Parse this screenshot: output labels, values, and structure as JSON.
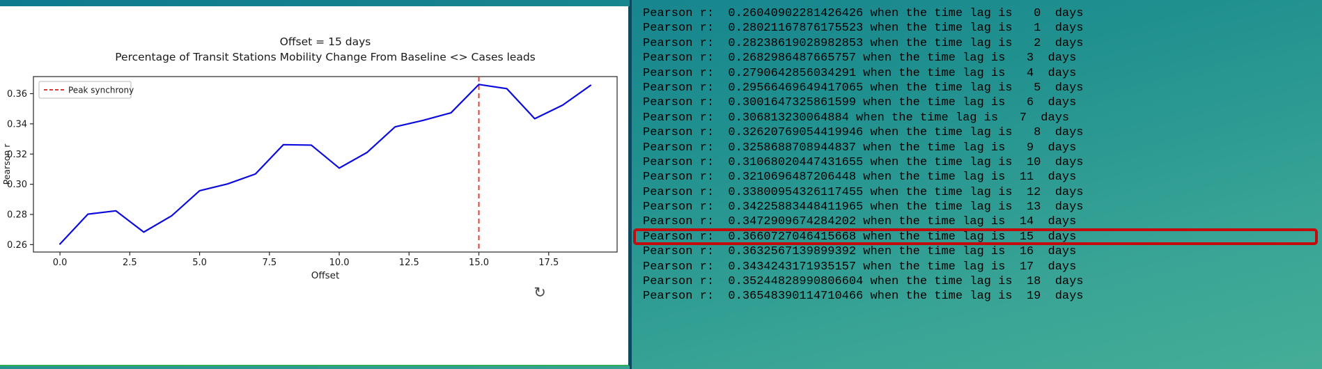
{
  "chart_data": {
    "type": "line",
    "title1": "Offset = 15 days",
    "title2": "Percentage of Transit Stations Mobility Change From Baseline <> Cases leads",
    "xlabel": "Offset",
    "ylabel": "Pearson r",
    "legend": [
      "Peak synchrony"
    ],
    "legend_position": "upper left",
    "grid": false,
    "x": [
      0,
      1,
      2,
      3,
      4,
      5,
      6,
      7,
      8,
      9,
      10,
      11,
      12,
      13,
      14,
      15,
      16,
      17,
      18,
      19
    ],
    "y": [
      0.2604,
      0.2802,
      0.2824,
      0.2683,
      0.2791,
      0.2957,
      0.3002,
      0.3068,
      0.3262,
      0.3259,
      0.3107,
      0.3211,
      0.338,
      0.3423,
      0.3473,
      0.3661,
      0.3633,
      0.3434,
      0.3524,
      0.3655
    ],
    "xlim": [
      -0.95,
      19.95
    ],
    "ylim": [
      0.2551,
      0.3713
    ],
    "xticks": [
      0,
      2.5,
      5,
      7.5,
      10,
      12.5,
      15,
      17.5
    ],
    "yticks": [
      0.26,
      0.28,
      0.3,
      0.32,
      0.34,
      0.36
    ],
    "peak_x": 15,
    "line_color": "#0b0bdd",
    "peak_line_color": "#e8352c",
    "spine_color": "#262626",
    "text_color": "#1a1a1a"
  },
  "icons": {
    "refresh": "↻"
  },
  "console": {
    "prefix": "Pearson r:",
    "middle": "when the time lag is",
    "suffix": "days",
    "highlight_index": 15,
    "highlight_color": "#c40a0a",
    "entries": [
      {
        "r": "0.26040902281426426",
        "lag": 0
      },
      {
        "r": "0.28021167876175523",
        "lag": 1
      },
      {
        "r": "0.28238619028982853",
        "lag": 2
      },
      {
        "r": "0.2682986487665757",
        "lag": 3
      },
      {
        "r": "0.2790642856034291",
        "lag": 4
      },
      {
        "r": "0.29566469649417065",
        "lag": 5
      },
      {
        "r": "0.3001647325861599",
        "lag": 6
      },
      {
        "r": "0.306813230064884",
        "lag": 7
      },
      {
        "r": "0.32620769054419946",
        "lag": 8
      },
      {
        "r": "0.3258688708944837",
        "lag": 9
      },
      {
        "r": "0.31068020447431655",
        "lag": 10
      },
      {
        "r": "0.3210696487206448",
        "lag": 11
      },
      {
        "r": "0.33800954326117455",
        "lag": 12
      },
      {
        "r": "0.34225883448411965",
        "lag": 13
      },
      {
        "r": "0.3472909674284202",
        "lag": 14
      },
      {
        "r": "0.3660727046415668",
        "lag": 15
      },
      {
        "r": "0.3632567139899392",
        "lag": 16
      },
      {
        "r": "0.3434243171935157",
        "lag": 17
      },
      {
        "r": "0.35244828990806604",
        "lag": 18
      },
      {
        "r": "0.36548390114710466",
        "lag": 19
      }
    ]
  }
}
